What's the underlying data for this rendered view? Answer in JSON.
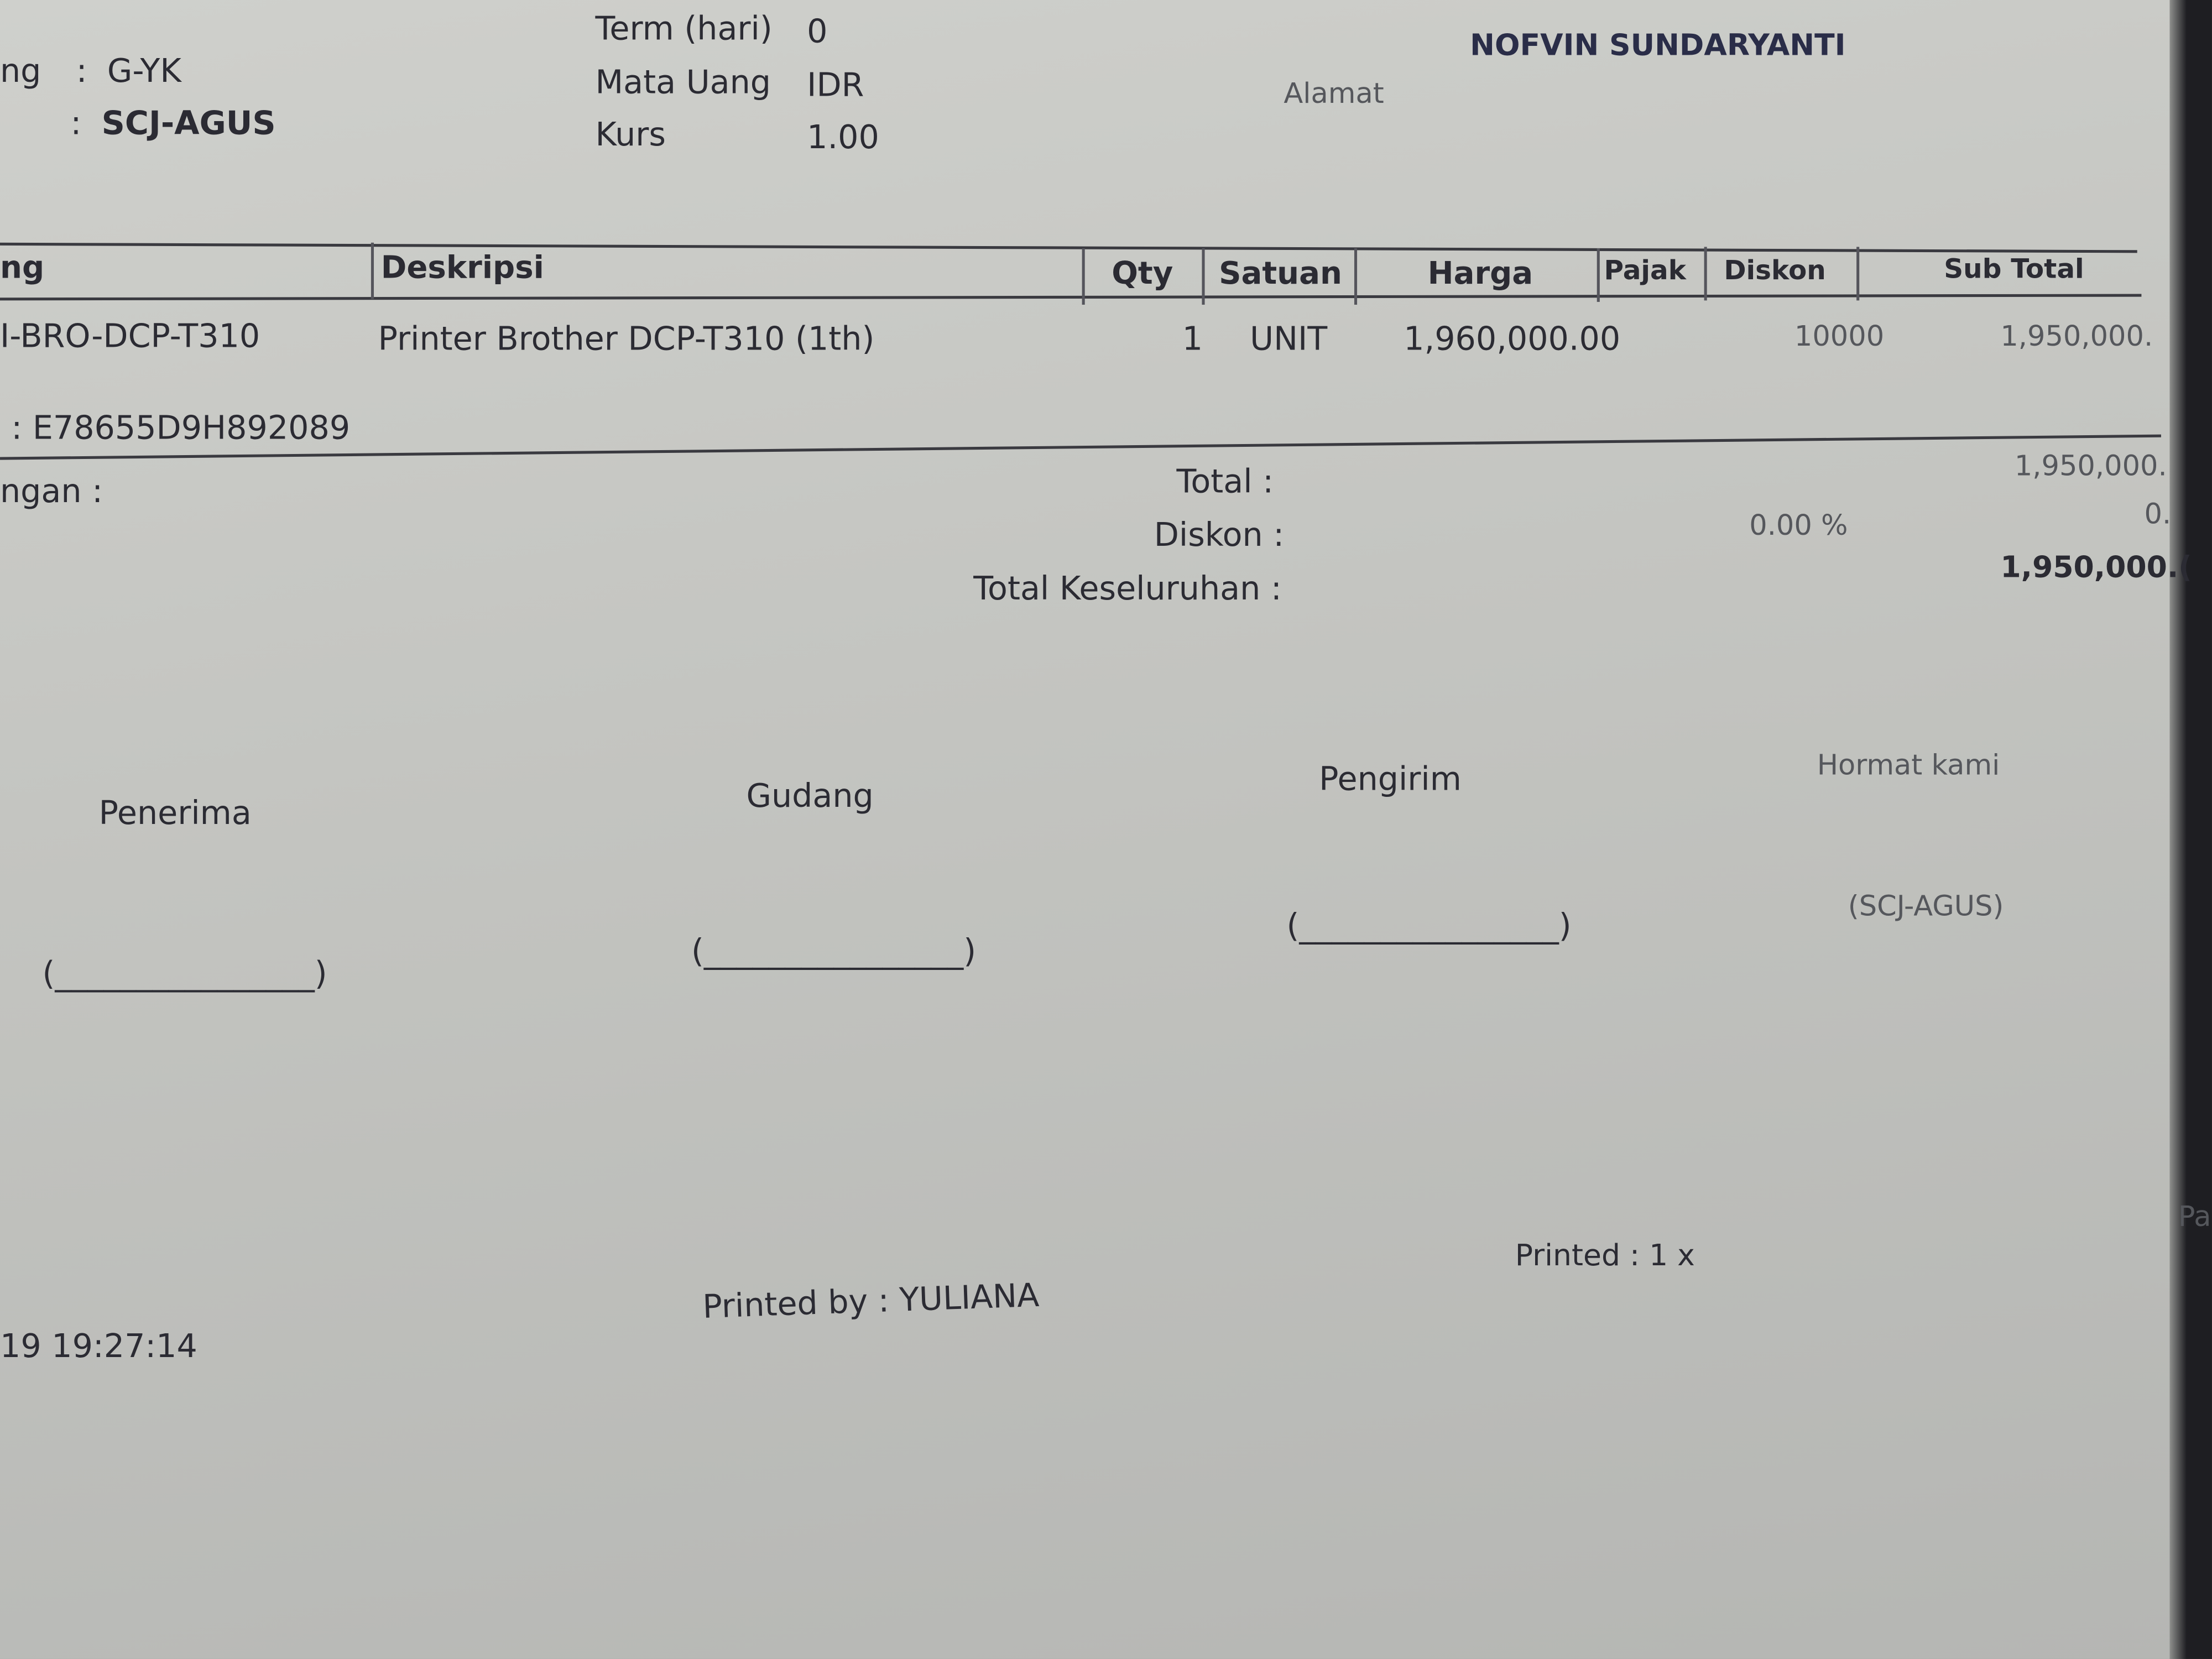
{
  "header": {
    "left_fields": [
      {
        "label": "ng",
        "value": "G-YK"
      },
      {
        "label": "",
        "value": "SCJ-AGUS"
      }
    ],
    "middle_fields": [
      {
        "label": "Term (hari)",
        "value": "0"
      },
      {
        "label": "Mata Uang",
        "value": "IDR"
      },
      {
        "label": "Kurs",
        "value": "1.00"
      }
    ],
    "customer_name": "NOFVIN SUNDARYANTI",
    "alamat_label": "Alamat"
  },
  "table": {
    "columns": [
      "ng",
      "Deskripsi",
      "Qty",
      "Satuan",
      "Harga",
      "Pajak",
      "Diskon",
      "Sub Total"
    ],
    "rows": [
      {
        "code": "I-BRO-DCP-T310",
        "description": "Printer Brother DCP-T310 (1th)",
        "qty": "1",
        "unit": "UNIT",
        "price": "1,960,000.00",
        "tax": "",
        "discount": "10000",
        "subtotal": "1,950,000."
      }
    ],
    "serial": ": E78655D9H892089"
  },
  "summary": {
    "note_label": "ngan :",
    "total_label": "Total :",
    "total_value": "1,950,000.",
    "discount_label": "Diskon :",
    "discount_pct": "0.00  %",
    "discount_value": "0.",
    "grand_label": "Total Keseluruhan :",
    "grand_value": "1,950,000.("
  },
  "signatures": {
    "penerima": "Penerima",
    "gudang": "Gudang",
    "pengirim": "Pengirim",
    "hormat": "Hormat kami",
    "blank": "(________________)",
    "hormat_name": "(SCJ-AGUS)"
  },
  "footer": {
    "timestamp": "19 19:27:14",
    "printed_by": "Printed by : YULIANA",
    "printed_count": "Printed : 1 x",
    "page": "Pa"
  }
}
